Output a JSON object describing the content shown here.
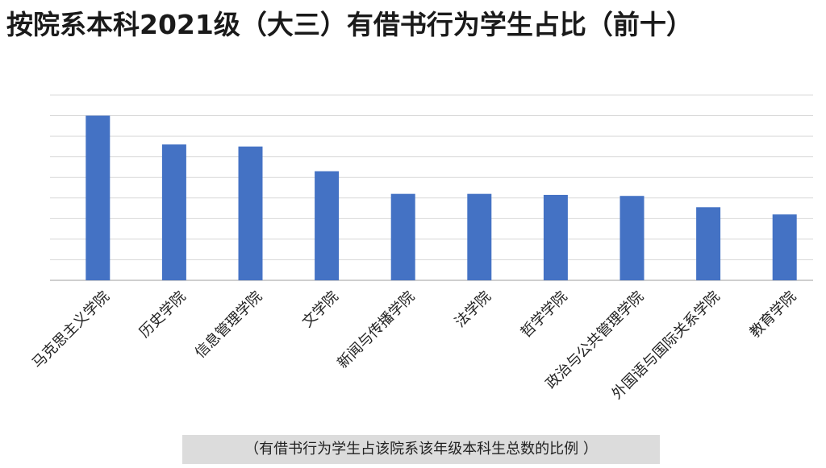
{
  "chart_data": {
    "type": "bar",
    "title": "按院系本科2021级（大三）有借书行为学生占比（前十）",
    "caption": "（有借书行为学生占该院系该年级本科生总数的比例 ）",
    "categories": [
      "马克思主义学院",
      "历史学院",
      "信息管理学院",
      "文学院",
      "新闻与传播学院",
      "法学院",
      "哲学学院",
      "政治与公共管理学院",
      "外国语与国际关系学院",
      "教育学院"
    ],
    "values": [
      8.0,
      6.6,
      6.5,
      5.3,
      4.2,
      4.2,
      4.15,
      4.1,
      3.55,
      3.2
    ],
    "ylim": [
      0,
      9
    ],
    "grid": true,
    "legend": "none",
    "bar_color": "#4472c4"
  }
}
